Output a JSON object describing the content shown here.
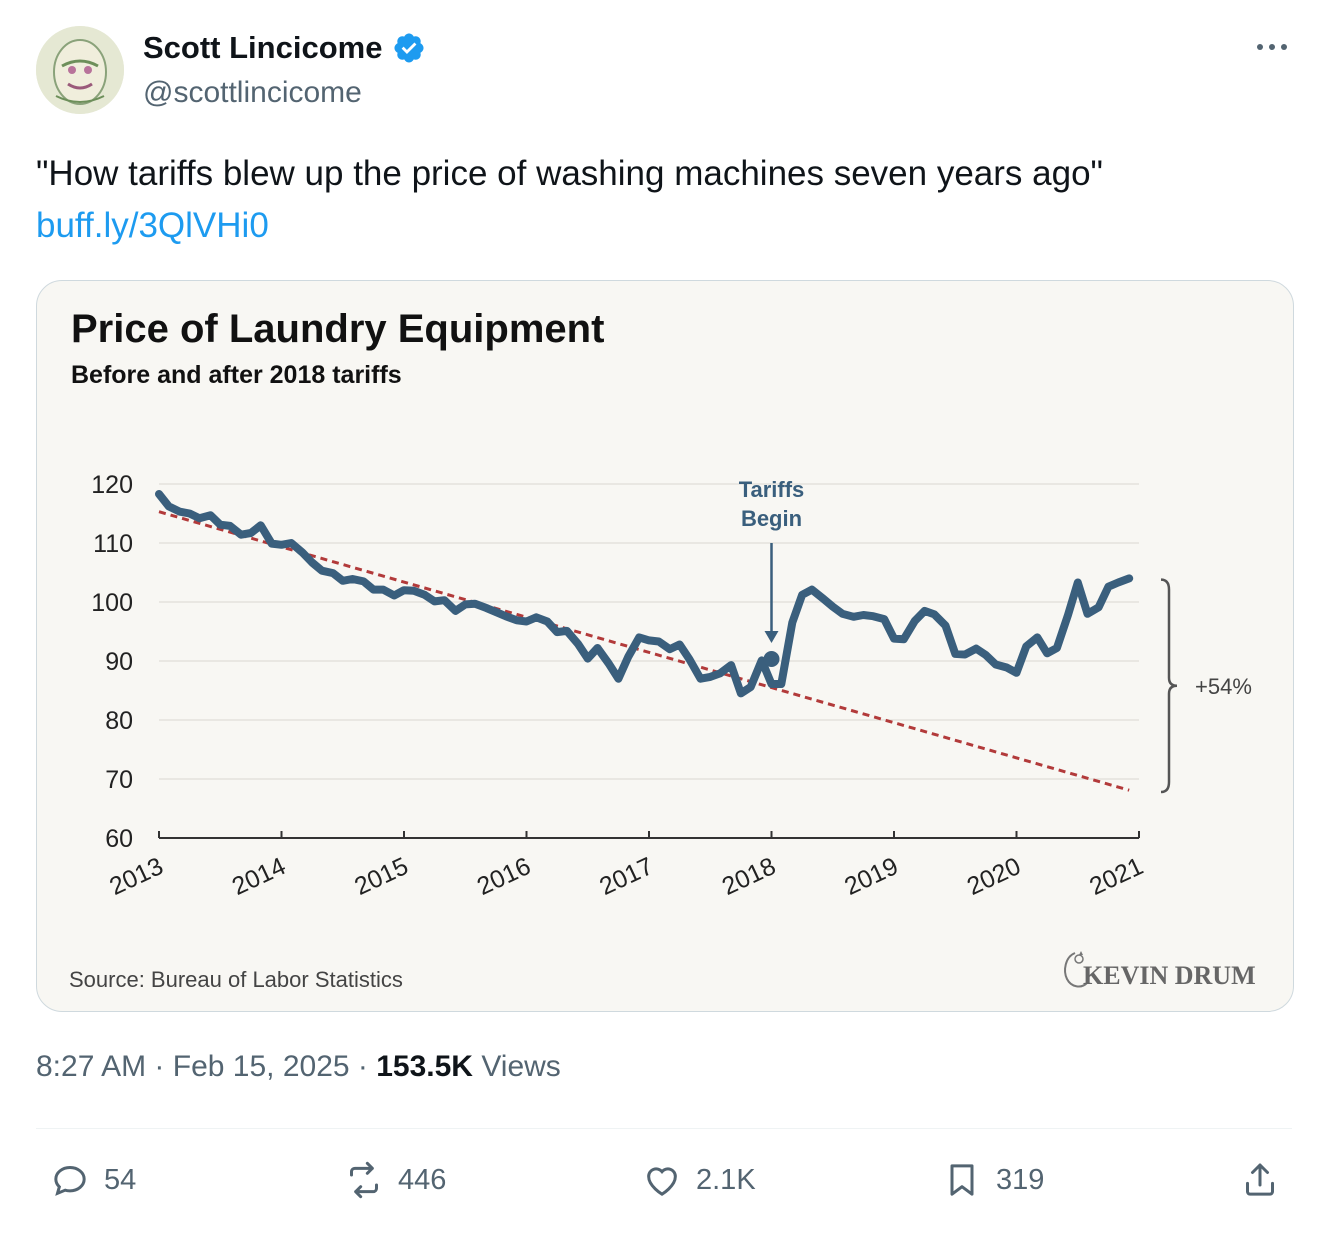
{
  "author": {
    "name": "Scott Lincicome",
    "handle": "@scottlincicome"
  },
  "tweet": {
    "text": "\"How tariffs blew up the price of washing machines seven years ago\"",
    "link": "buff.ly/3QlVHi0"
  },
  "media": {
    "source": "Source: Bureau of Labor Statistics",
    "brand": "KEVIN DRUM"
  },
  "chart_data": {
    "type": "line",
    "title": "Price of Laundry Equipment",
    "subtitle": "Before and after 2018 tariffs",
    "xlabel": "",
    "ylabel": "",
    "x_ticks": [
      "2013",
      "2014",
      "2015",
      "2016",
      "2017",
      "2018",
      "2019",
      "2020",
      "2021"
    ],
    "y_ticks": [
      "120",
      "110",
      "100",
      "90",
      "80",
      "70",
      "60"
    ],
    "ylim": [
      60,
      120
    ],
    "xlim": [
      2013,
      2021
    ],
    "grid": "horizontal",
    "series": [
      {
        "name": "",
        "color": "#3a5f7d",
        "x": [
          2013.0,
          2013.08,
          2013.17,
          2013.25,
          2013.33,
          2013.42,
          2013.5,
          2013.58,
          2013.67,
          2013.75,
          2013.83,
          2013.92,
          2014.0,
          2014.08,
          2014.17,
          2014.25,
          2014.33,
          2014.42,
          2014.5,
          2014.58,
          2014.67,
          2014.75,
          2014.83,
          2014.92,
          2015.0,
          2015.08,
          2015.17,
          2015.25,
          2015.33,
          2015.42,
          2015.5,
          2015.58,
          2015.67,
          2015.75,
          2015.83,
          2015.92,
          2016.0,
          2016.08,
          2016.17,
          2016.25,
          2016.33,
          2016.42,
          2016.5,
          2016.58,
          2016.67,
          2016.75,
          2016.83,
          2016.92,
          2017.0,
          2017.08,
          2017.17,
          2017.25,
          2017.33,
          2017.42,
          2017.5,
          2017.58,
          2017.67,
          2017.75,
          2017.83,
          2017.92,
          2018.0,
          2018.08,
          2018.17,
          2018.25,
          2018.33,
          2018.42,
          2018.5,
          2018.58,
          2018.67,
          2018.75,
          2018.83,
          2018.92,
          2019.0,
          2019.08,
          2019.17,
          2019.25,
          2019.33,
          2019.42,
          2019.5,
          2019.58,
          2019.67,
          2019.75,
          2019.83,
          2019.92,
          2020.0,
          2020.08,
          2020.17,
          2020.25,
          2020.33,
          2020.42,
          2020.5,
          2020.58,
          2020.67,
          2020.75,
          2020.83,
          2020.92
        ],
        "y": [
          118.3,
          116.2,
          115.3,
          115.0,
          114.2,
          114.7,
          113.1,
          112.9,
          111.4,
          111.7,
          113.0,
          109.9,
          109.7,
          110.0,
          108.4,
          106.7,
          105.3,
          104.9,
          103.6,
          103.9,
          103.5,
          102.1,
          102.1,
          101.1,
          102.0,
          101.9,
          101.2,
          100.1,
          100.3,
          98.5,
          99.6,
          99.7,
          99.0,
          98.3,
          97.6,
          96.9,
          96.7,
          97.4,
          96.7,
          94.9,
          95.1,
          92.9,
          90.4,
          92.2,
          89.6,
          87.0,
          90.7,
          94.0,
          93.5,
          93.3,
          92.0,
          92.8,
          90.3,
          87.0,
          87.3,
          87.9,
          89.3,
          84.5,
          85.6,
          90.1,
          86.1,
          86.1,
          96.5,
          101.2,
          102.1,
          100.6,
          99.2,
          98.0,
          97.5,
          97.8,
          97.6,
          97.1,
          93.8,
          93.7,
          96.8,
          98.5,
          97.9,
          96.0,
          91.2,
          91.1,
          92.1,
          91.0,
          89.4,
          88.9,
          88.0,
          92.5,
          94.0,
          91.3,
          92.2,
          97.8,
          103.3,
          98.0,
          99.1,
          102.6,
          103.3,
          104.0
        ]
      },
      {
        "name": "",
        "style": "dashed",
        "color": "#b23a3a",
        "x": [
          2013.0,
          2020.92
        ],
        "y": [
          115.3,
          68.1
        ]
      }
    ],
    "annotations": [
      {
        "text": "Tariffs",
        "x": 2018.0
      },
      {
        "text": "Begin",
        "x": 2018.0
      },
      {
        "text": "+54%",
        "x": 2021.0
      }
    ]
  },
  "meta": {
    "time": "8:27 AM",
    "date": "Feb 15, 2025",
    "views_count": "153.5K",
    "views_label": "Views"
  },
  "actions": {
    "replies": "54",
    "reposts": "446",
    "likes": "2.1K",
    "bookmarks": "319"
  }
}
